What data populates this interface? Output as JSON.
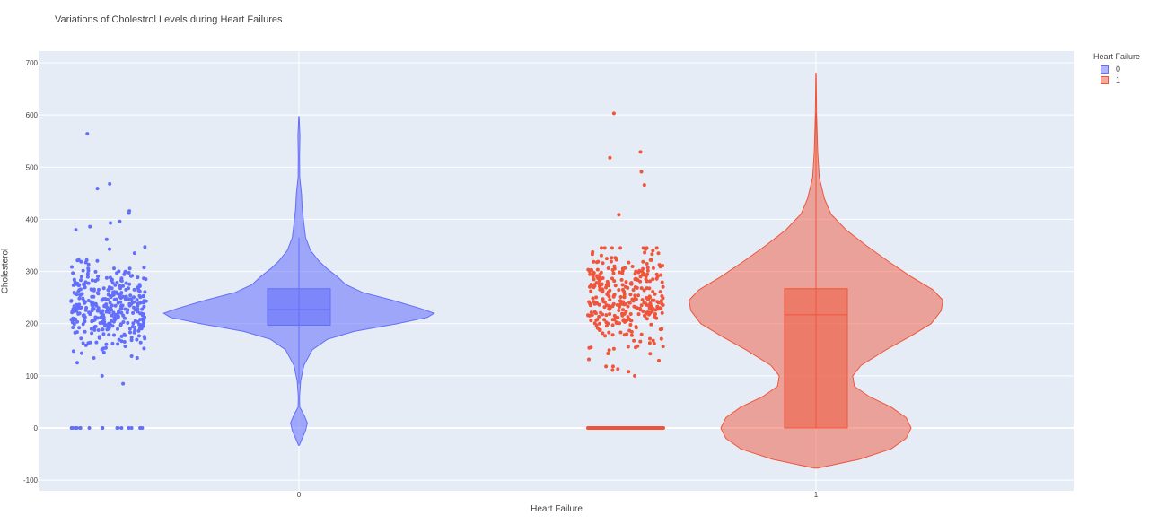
{
  "chart_data": {
    "type": "violin",
    "title": "Variations of Cholestrol Levels during Heart Failures",
    "xlabel": "Heart Failure",
    "ylabel": "Cholesterol",
    "categories": [
      "0",
      "1"
    ],
    "ylim": [
      -120,
      720
    ],
    "yticks": [
      -100,
      0,
      100,
      200,
      300,
      400,
      500,
      600,
      700
    ],
    "grid": true,
    "legend": {
      "title": "Heart Failure",
      "placement": "top-right",
      "entries": [
        "0",
        "1"
      ]
    },
    "series": [
      {
        "name": "0",
        "color": "#636efa",
        "box": {
          "q1": 197,
          "median": 227,
          "q3": 267,
          "whisker_low": 85,
          "whisker_high": 365
        },
        "range": [
          -33,
          597
        ],
        "density": [
          [
            -33,
            0.25
          ],
          [
            -20,
            2
          ],
          [
            -5,
            4
          ],
          [
            10,
            5
          ],
          [
            25,
            3
          ],
          [
            40,
            0.5
          ],
          [
            60,
            0.4
          ],
          [
            90,
            1
          ],
          [
            120,
            3
          ],
          [
            150,
            8
          ],
          [
            170,
            17
          ],
          [
            185,
            33
          ],
          [
            200,
            59
          ],
          [
            212,
            77
          ],
          [
            220,
            81
          ],
          [
            230,
            72
          ],
          [
            245,
            56
          ],
          [
            260,
            38
          ],
          [
            275,
            28
          ],
          [
            290,
            23
          ],
          [
            305,
            17
          ],
          [
            320,
            12
          ],
          [
            340,
            7
          ],
          [
            365,
            4
          ],
          [
            390,
            3
          ],
          [
            420,
            2
          ],
          [
            450,
            1.5
          ],
          [
            480,
            0.5
          ],
          [
            520,
            0.4
          ],
          [
            560,
            0.6
          ],
          [
            597,
            0.1
          ]
        ],
        "scatter_zero_count": 17,
        "scatter_outliers": [
          85,
          100,
          564,
          468,
          459,
          416,
          412,
          396,
          393,
          386
        ]
      },
      {
        "name": "1",
        "color": "#ef553b",
        "box": {
          "q1": 0,
          "median": 217,
          "q3": 267,
          "whisker_low": 0,
          "whisker_high": 603
        },
        "range": [
          -77,
          680
        ],
        "density": [
          [
            -77,
            1
          ],
          [
            -60,
            26
          ],
          [
            -40,
            45
          ],
          [
            -20,
            54
          ],
          [
            0,
            57
          ],
          [
            20,
            54
          ],
          [
            40,
            45
          ],
          [
            60,
            32
          ],
          [
            80,
            23
          ],
          [
            100,
            22
          ],
          [
            120,
            27
          ],
          [
            150,
            42
          ],
          [
            175,
            56
          ],
          [
            200,
            69
          ],
          [
            225,
            75
          ],
          [
            245,
            76
          ],
          [
            265,
            70
          ],
          [
            290,
            57
          ],
          [
            320,
            43
          ],
          [
            350,
            30
          ],
          [
            380,
            18
          ],
          [
            410,
            9
          ],
          [
            440,
            5
          ],
          [
            480,
            2
          ],
          [
            530,
            1
          ],
          [
            600,
            0.4
          ],
          [
            680,
            0.1
          ]
        ],
        "scatter_zero_count": 150,
        "scatter_outliers": [
          100,
          108,
          111,
          113,
          603,
          529,
          518,
          491,
          466,
          409
        ]
      }
    ]
  }
}
